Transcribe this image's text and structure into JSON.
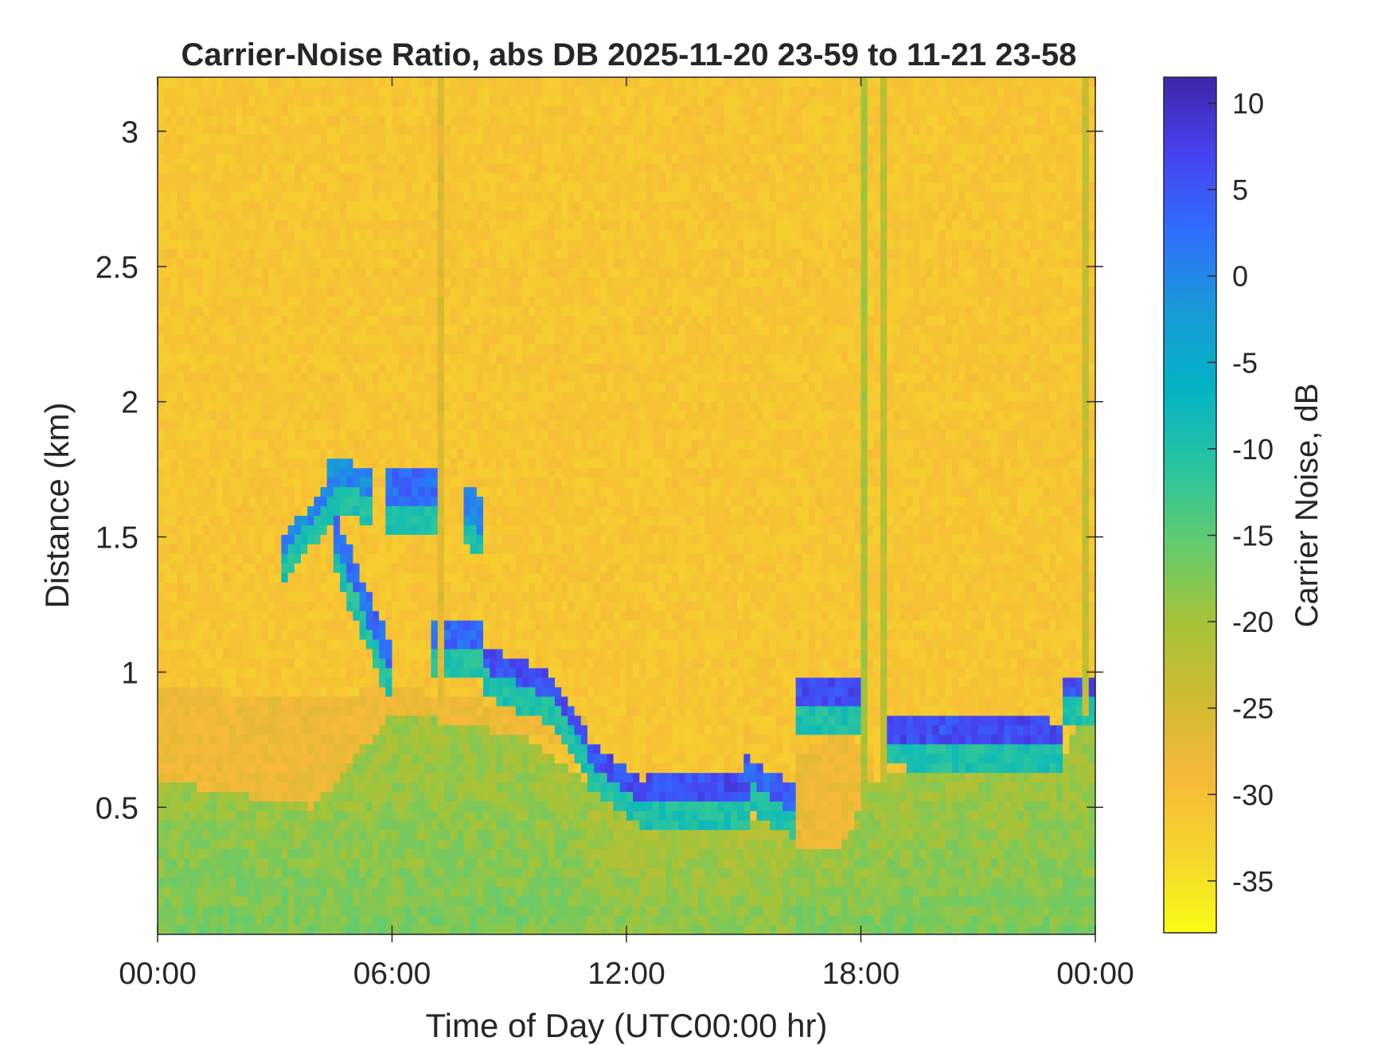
{
  "chart_data": {
    "type": "heatmap",
    "title": "Carrier-Noise Ratio, abs DB 2025-11-20 23-59 to 11-21 23-58",
    "xlabel": "Time of Day (UTC00:00 hr)",
    "ylabel": "Distance (km)",
    "colorbar_label": "Carrier Noise, dB",
    "x_range_hours": [
      0,
      24
    ],
    "x_ticks": [
      {
        "hour": 0,
        "label": "00:00"
      },
      {
        "hour": 6,
        "label": "06:00"
      },
      {
        "hour": 12,
        "label": "12:00"
      },
      {
        "hour": 18,
        "label": "18:00"
      },
      {
        "hour": 24,
        "label": "00:00"
      }
    ],
    "ylim_km": [
      0.03,
      3.2
    ],
    "y_ticks": [
      {
        "value": 0.5,
        "label": "0.5"
      },
      {
        "value": 1,
        "label": "1"
      },
      {
        "value": 1.5,
        "label": "1.5"
      },
      {
        "value": 2,
        "label": "2"
      },
      {
        "value": 2.5,
        "label": "2.5"
      },
      {
        "value": 3,
        "label": "3"
      }
    ],
    "color_range_db": [
      -38,
      11.5
    ],
    "colorbar_ticks": [
      {
        "value": 10,
        "label": "10"
      },
      {
        "value": 5,
        "label": "5"
      },
      {
        "value": 0,
        "label": "0"
      },
      {
        "value": -5,
        "label": "-5"
      },
      {
        "value": -10,
        "label": "-10"
      },
      {
        "value": -15,
        "label": "-15"
      },
      {
        "value": -20,
        "label": "-20"
      },
      {
        "value": -25,
        "label": "-25"
      },
      {
        "value": -30,
        "label": "-30"
      },
      {
        "value": -35,
        "label": "-35"
      }
    ],
    "colormap": [
      "#3e26a8",
      "#4743f2",
      "#2f6ffc",
      "#199bd8",
      "#03b3c5",
      "#27c4a0",
      "#62cb6e",
      "#a5c338",
      "#d0ba31",
      "#f7b938",
      "#f5d52c",
      "#f9fb15"
    ],
    "background_db": -31,
    "boundary_layer_db": -17,
    "boundary_layer_top_km": [
      {
        "hour": 0,
        "km": 0.95
      },
      {
        "hour": 1.5,
        "km": 0.9
      },
      {
        "hour": 3,
        "km": 0.8
      },
      {
        "hour": 5,
        "km": 0.72
      },
      {
        "hour": 6,
        "km": 0.85
      },
      {
        "hour": 8,
        "km": 0.9
      },
      {
        "hour": 10,
        "km": 0.7
      },
      {
        "hour": 11,
        "km": 0.6
      },
      {
        "hour": 12,
        "km": 0.5
      },
      {
        "hour": 15,
        "km": 0.45
      },
      {
        "hour": 16.3,
        "km": 0.5
      },
      {
        "hour": 17.5,
        "km": 0.35
      },
      {
        "hour": 18.3,
        "km": 0.6
      },
      {
        "hour": 20,
        "km": 0.65
      },
      {
        "hour": 23.2,
        "km": 0.7
      },
      {
        "hour": 23.5,
        "km": 0.8
      },
      {
        "hour": 24,
        "km": 0.85
      }
    ],
    "residual_layer_db": -28,
    "residual_layer": [
      {
        "hour": 0,
        "bottom_km": 0.6,
        "top_km": 0.95
      },
      {
        "hour": 4,
        "bottom_km": 0.5,
        "top_km": 0.9
      },
      {
        "hour": 6,
        "bottom_km": 0.85,
        "top_km": 0.95
      },
      {
        "hour": 10,
        "bottom_km": 0.75,
        "top_km": 0.85
      },
      {
        "hour": 16.5,
        "bottom_km": 0.35,
        "top_km": 0.7
      },
      {
        "hour": 17.5,
        "bottom_km": 0.35,
        "top_km": 0.8
      },
      {
        "hour": 18.2,
        "bottom_km": 0.6,
        "top_km": 0.7
      }
    ],
    "cloud_layers_db": 2,
    "cloud_layers": [
      {
        "hour_start": 3.2,
        "hour_end": 4.5,
        "top_km": [
          1.5,
          1.72
        ],
        "thickness_km": 0.06,
        "db": 0
      },
      {
        "hour_start": 4.4,
        "hour_end": 5.5,
        "top_km": [
          1.8,
          1.75
        ],
        "thickness_km": 0.1,
        "db": 0
      },
      {
        "hour_start": 4.5,
        "hour_end": 6.0,
        "top_km": [
          1.6,
          1.1
        ],
        "thickness_km": 0.12,
        "db": 3
      },
      {
        "hour_start": 5.8,
        "hour_end": 7.2,
        "top_km": [
          1.75,
          1.75
        ],
        "thickness_km": 0.15,
        "db": 3
      },
      {
        "hour_start": 7.8,
        "hour_end": 8.3,
        "top_km": [
          1.7,
          1.65
        ],
        "thickness_km": 0.13,
        "db": 0
      },
      {
        "hour_start": 7.0,
        "hour_end": 8.4,
        "top_km": [
          1.2,
          1.2
        ],
        "thickness_km": 0.12,
        "db": 3
      },
      {
        "hour_start": 8.4,
        "hour_end": 10.0,
        "top_km": [
          1.1,
          1.0
        ],
        "thickness_km": 0.09,
        "db": 6
      },
      {
        "hour_start": 10.0,
        "hour_end": 11.0,
        "top_km": [
          1.0,
          0.8
        ],
        "thickness_km": 0.09,
        "db": 6
      },
      {
        "hour_start": 11.0,
        "hour_end": 12.5,
        "top_km": [
          0.76,
          0.6
        ],
        "thickness_km": 0.09,
        "db": 6
      },
      {
        "hour_start": 12.5,
        "hour_end": 15.1,
        "top_km": [
          0.62,
          0.62
        ],
        "thickness_km": 0.09,
        "db": 6
      },
      {
        "hour_start": 15.0,
        "hour_end": 16.3,
        "top_km": [
          0.7,
          0.58
        ],
        "thickness_km": 0.1,
        "db": 4
      },
      {
        "hour_start": 16.3,
        "hour_end": 18.0,
        "top_km": [
          0.98,
          0.98
        ],
        "thickness_km": 0.12,
        "db": 6
      },
      {
        "hour_start": 18.7,
        "hour_end": 23.2,
        "top_km": [
          0.85,
          0.82
        ],
        "thickness_km": 0.1,
        "db": 6
      },
      {
        "hour_start": 23.2,
        "hour_end": 24.0,
        "top_km": [
          0.99,
          0.99
        ],
        "thickness_km": 0.07,
        "db": 6
      }
    ],
    "vertical_streaks": [
      {
        "hour": 18.05,
        "db": -20
      },
      {
        "hour": 18.6,
        "db": -22
      },
      {
        "hour": 23.7,
        "db": -23
      },
      {
        "hour": 7.3,
        "db": -26
      }
    ]
  }
}
